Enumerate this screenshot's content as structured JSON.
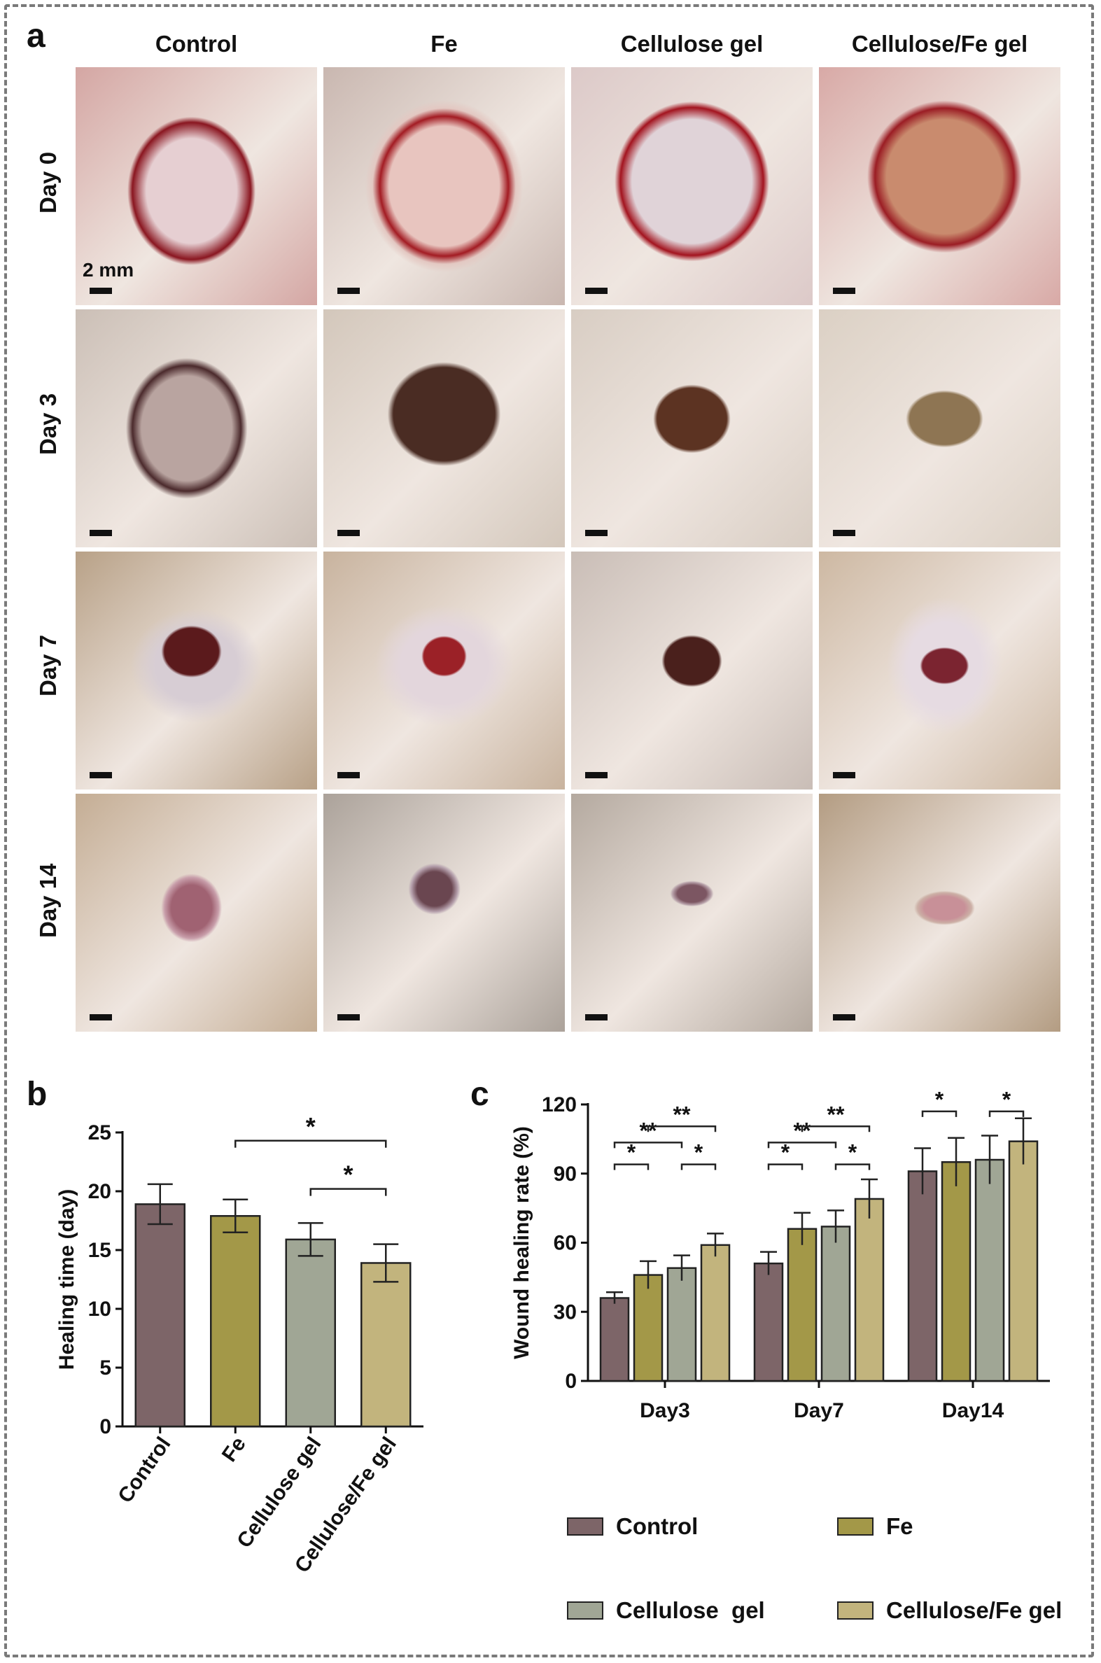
{
  "panel_a": {
    "letter": "a",
    "columns": [
      "Control",
      "Fe",
      "Cellulose gel",
      "Cellulose/Fe gel"
    ],
    "rows": [
      "Day 0",
      "Day 3",
      "Day 7",
      "Day 14"
    ],
    "scale_label": "2 mm"
  },
  "chart_data": [
    {
      "panel": "b",
      "type": "bar",
      "categories": [
        "Control",
        "Fe",
        "Cellulose gel",
        "Cellulose/Fe gel"
      ],
      "values": [
        18.9,
        17.9,
        15.9,
        13.9
      ],
      "errors": [
        1.7,
        1.4,
        1.4,
        1.6
      ],
      "ylabel": "Healing time (day)",
      "ylim": [
        0,
        25
      ],
      "yticks": [
        0,
        5,
        10,
        15,
        20,
        25
      ],
      "colors": [
        "#7d6568",
        "#a39848",
        "#a0a695",
        "#c2b47d"
      ],
      "significance": [
        {
          "from": 1,
          "to": 3,
          "label": "*"
        },
        {
          "from": 2,
          "to": 3,
          "label": "*"
        }
      ]
    },
    {
      "panel": "c",
      "type": "bar",
      "categories": [
        "Day3",
        "Day7",
        "Day14"
      ],
      "ylabel": "Wound healing rate (%)",
      "ylim": [
        0,
        120
      ],
      "yticks": [
        0,
        30,
        60,
        90,
        120
      ],
      "series": [
        {
          "name": "Control",
          "values": [
            36,
            51,
            91
          ],
          "errors": [
            2.5,
            5,
            10
          ],
          "color": "#7d6568"
        },
        {
          "name": "Fe",
          "values": [
            46,
            66,
            95
          ],
          "errors": [
            6,
            7,
            10.5
          ],
          "color": "#a39848"
        },
        {
          "name": "Cellulose  gel",
          "values": [
            49,
            67,
            96
          ],
          "errors": [
            5.5,
            7,
            10.5
          ],
          "color": "#a0a695"
        },
        {
          "name": "Cellulose/Fe gel",
          "values": [
            59,
            79,
            104
          ],
          "errors": [
            5,
            8.5,
            10
          ],
          "color": "#c2b47d"
        }
      ],
      "significance": [
        {
          "group": 0,
          "from": 0,
          "to": 1,
          "label": "*",
          "level": 0
        },
        {
          "group": 0,
          "from": 2,
          "to": 3,
          "label": "*",
          "level": 0
        },
        {
          "group": 0,
          "from": 0,
          "to": 2,
          "label": "**",
          "level": 1
        },
        {
          "group": 0,
          "from": 1,
          "to": 3,
          "label": "**",
          "level": 2
        },
        {
          "group": 1,
          "from": 0,
          "to": 1,
          "label": "*",
          "level": 0
        },
        {
          "group": 1,
          "from": 2,
          "to": 3,
          "label": "*",
          "level": 0
        },
        {
          "group": 1,
          "from": 0,
          "to": 2,
          "label": "**",
          "level": 1
        },
        {
          "group": 1,
          "from": 1,
          "to": 3,
          "label": "**",
          "level": 2
        },
        {
          "group": 2,
          "from": 0,
          "to": 1,
          "label": "*",
          "level": 0
        },
        {
          "group": 2,
          "from": 2,
          "to": 3,
          "label": "*",
          "level": 0
        },
        {
          "group": 2,
          "from": 1,
          "to": 3,
          "label": "*",
          "level": 1
        }
      ]
    }
  ]
}
